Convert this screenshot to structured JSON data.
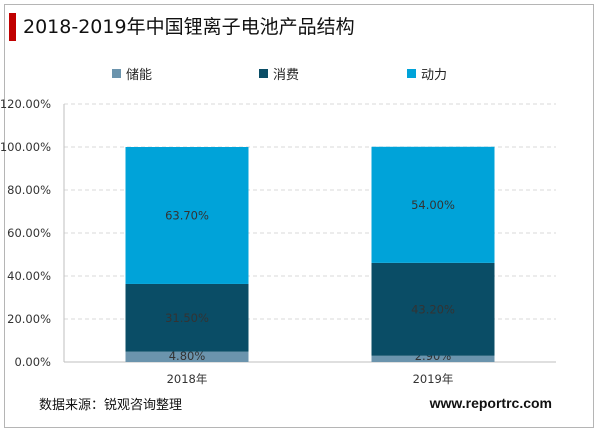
{
  "title": "2018-2019年中国锂离子电池产品结构",
  "source": "数据来源：锐观咨询整理",
  "website": "www.reportrc.com",
  "colors": {
    "储能": "#6b94ad",
    "消费": "#0a4d66",
    "动力": "#00a3d9",
    "title_bar": "#c00000",
    "grid": "#d9d9d9"
  },
  "chart_data": {
    "type": "bar",
    "stacked": true,
    "categories": [
      "2018年",
      "2019年"
    ],
    "series": [
      {
        "name": "储能",
        "values": [
          4.8,
          2.9
        ],
        "labels": [
          "4.80%",
          "2.90%"
        ]
      },
      {
        "name": "消费",
        "values": [
          31.5,
          43.2
        ],
        "labels": [
          "31.50%",
          "43.20%"
        ]
      },
      {
        "name": "动力",
        "values": [
          63.7,
          54.0
        ],
        "labels": [
          "63.70%",
          "54.00%"
        ]
      }
    ],
    "ylim": [
      0,
      120
    ],
    "yticks": [
      "0.00%",
      "20.00%",
      "40.00%",
      "60.00%",
      "80.00%",
      "100.00%",
      "120.00%"
    ],
    "ytick_values": [
      0,
      20,
      40,
      60,
      80,
      100,
      120
    ],
    "grid": true,
    "legend": "top"
  }
}
